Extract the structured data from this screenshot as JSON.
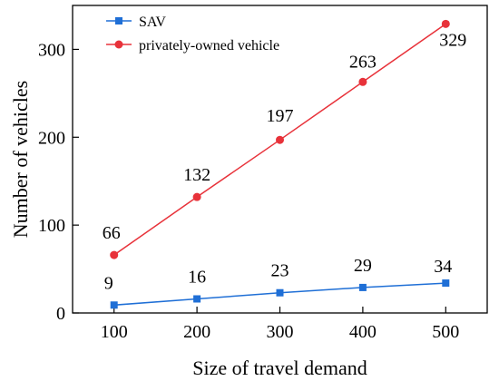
{
  "chart_data": {
    "type": "line",
    "title": "",
    "xlabel": "Size of travel demand",
    "ylabel": "Number of vehicles",
    "x": [
      100,
      200,
      300,
      400,
      500
    ],
    "xlim": [
      50,
      550
    ],
    "ylim": [
      0,
      350
    ],
    "xticks": [
      100,
      200,
      300,
      400,
      500
    ],
    "yticks": [
      0,
      100,
      200,
      300
    ],
    "grid": false,
    "legend_position": "top-left",
    "series": [
      {
        "name": "SAV",
        "values": [
          9,
          16,
          23,
          29,
          34
        ],
        "labels": [
          "9",
          "16",
          "23",
          "29",
          "34"
        ],
        "color": "#1f6fd6",
        "marker": "square"
      },
      {
        "name": "privately-owned vehicle",
        "values": [
          66,
          132,
          197,
          263,
          329
        ],
        "labels": [
          "66",
          "132",
          "197",
          "263",
          "329"
        ],
        "color": "#e8323a",
        "marker": "circle"
      }
    ]
  }
}
